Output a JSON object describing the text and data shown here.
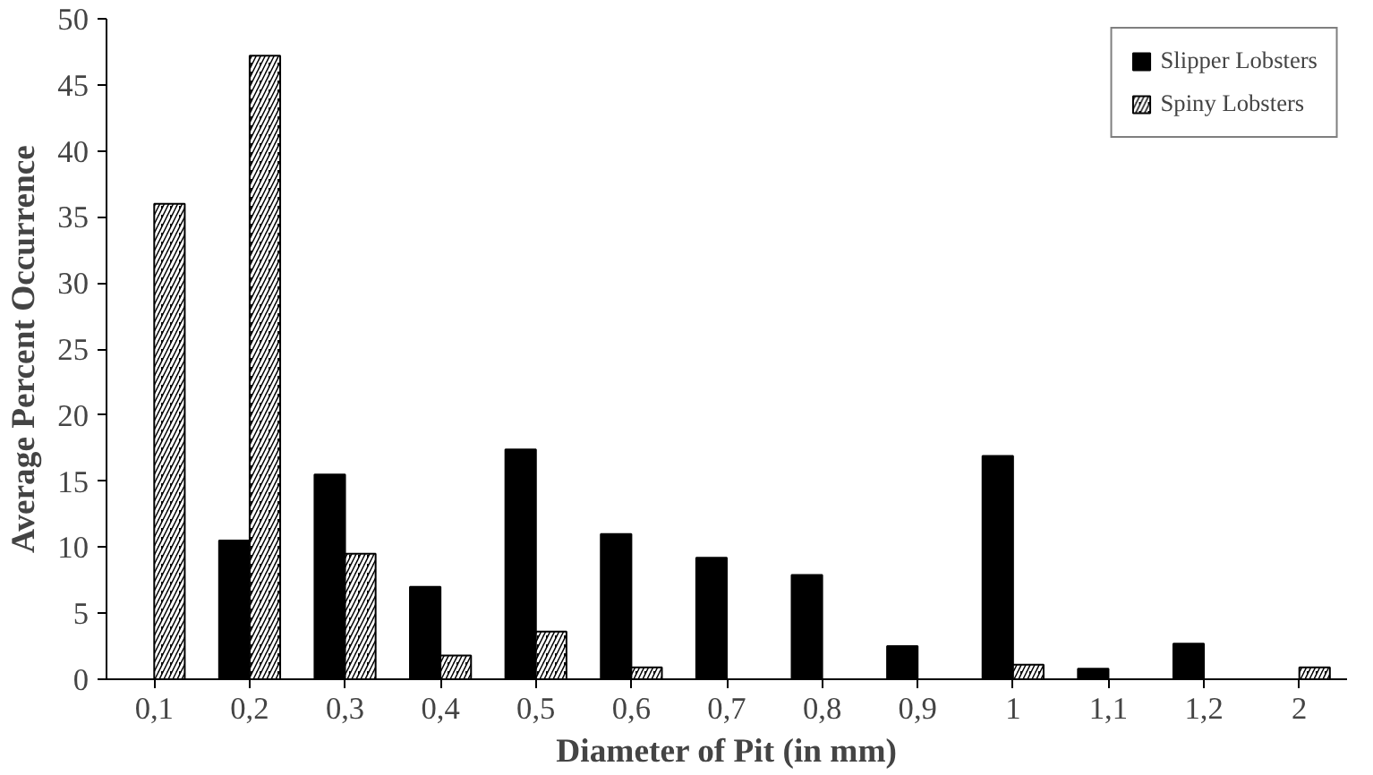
{
  "chart_data": {
    "type": "bar",
    "xlabel": "Diameter of Pit (in mm)",
    "ylabel": "Average Percent Occurrence",
    "categories": [
      "0,1",
      "0,2",
      "0,3",
      "0,4",
      "0,5",
      "0,6",
      "0,7",
      "0,8",
      "0,9",
      "1",
      "1,1",
      "1,2",
      "2"
    ],
    "series": [
      {
        "name": "Slipper Lobsters",
        "color": "#000000",
        "values": [
          0,
          10.5,
          15.5,
          7,
          17.4,
          11,
          9.2,
          7.9,
          2.5,
          16.9,
          0.8,
          2.7,
          0
        ]
      },
      {
        "name": "Spiny Lobsters",
        "color": "#000000",
        "values": [
          36,
          47.2,
          9.5,
          1.8,
          3.6,
          0.9,
          0,
          0,
          0,
          1.1,
          0,
          0,
          0.9
        ]
      }
    ],
    "ylim": [
      0,
      50
    ],
    "yticks": [
      0,
      5,
      10,
      15,
      20,
      25,
      30,
      35,
      40,
      45,
      50
    ],
    "grid": false,
    "legend": "top right"
  }
}
